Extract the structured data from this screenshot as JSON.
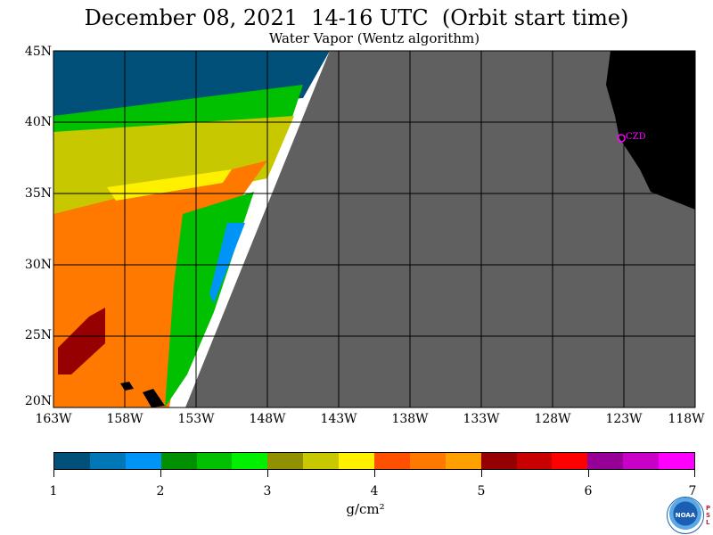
{
  "header": {
    "title": "December 08, 2021  14-16 UTC  (Orbit start time)",
    "subtitle": "Water Vapor (Wentz algorithm)"
  },
  "map": {
    "lat_labels": [
      "45N",
      "40N",
      "35N",
      "30N",
      "25N",
      "20N"
    ],
    "lon_labels": [
      "163W",
      "158W",
      "153W",
      "148W",
      "143W",
      "138W",
      "133W",
      "128W",
      "123W",
      "118W"
    ],
    "station_label": "CZD",
    "colors": {
      "no_data": "#606060",
      "land": "#000000",
      "grid": "#000000",
      "station": "#ff00ff"
    }
  },
  "colorbar": {
    "colors": [
      "#00507a",
      "#0078b8",
      "#0094f8",
      "#009000",
      "#00c000",
      "#00f000",
      "#909000",
      "#c8c800",
      "#fff000",
      "#ff5000",
      "#ff7800",
      "#ffa000",
      "#960000",
      "#c80000",
      "#ff0000",
      "#960096",
      "#c800c8",
      "#ff00ff"
    ],
    "labels": [
      "1",
      "2",
      "3",
      "4",
      "5",
      "6",
      "7"
    ],
    "units_label": "g/cm²"
  },
  "logos": {
    "noaa": "NOAA",
    "psl": "P S L"
  }
}
